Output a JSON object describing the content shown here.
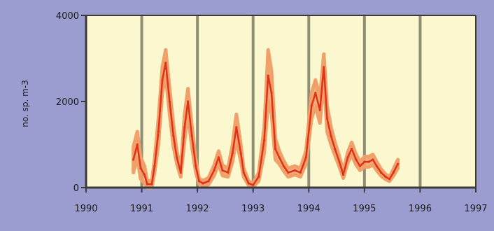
{
  "chart_data": {
    "type": "line",
    "title": "",
    "xlabel": "",
    "ylabel": "no. sp. m-3",
    "xlim": [
      1990,
      1997
    ],
    "ylim": [
      0,
      4000
    ],
    "x_ticks": [
      1990,
      1991,
      1992,
      1993,
      1994,
      1995,
      1996,
      1997
    ],
    "x_tick_labels": [
      "1990",
      "1991",
      "1992",
      "1993",
      "1994",
      "1995",
      "1996",
      "1997"
    ],
    "y_ticks": [
      0,
      2000,
      4000
    ],
    "y_tick_labels": [
      "0",
      "2000",
      "4000"
    ],
    "grid": "vertical",
    "colors": {
      "background": "#9b9ccf",
      "plot": "#fbf7cf",
      "axis": "#3a3a3a",
      "grid": "#8f8f78",
      "band": "#f0a068",
      "line": "#e03218"
    },
    "series": [
      {
        "points": [
          [
            1990.85,
            650
          ],
          [
            1990.92,
            1000
          ],
          [
            1990.98,
            450
          ],
          [
            1991.05,
            300
          ],
          [
            1991.1,
            80
          ],
          [
            1991.18,
            80
          ],
          [
            1991.23,
            500
          ],
          [
            1991.3,
            1300
          ],
          [
            1991.37,
            2500
          ],
          [
            1991.43,
            2900
          ],
          [
            1991.5,
            2000
          ],
          [
            1991.57,
            1200
          ],
          [
            1991.63,
            700
          ],
          [
            1991.7,
            350
          ],
          [
            1991.77,
            1400
          ],
          [
            1991.83,
            2000
          ],
          [
            1991.9,
            1200
          ],
          [
            1991.97,
            500
          ],
          [
            1992.03,
            150
          ],
          [
            1992.1,
            100
          ],
          [
            1992.2,
            150
          ],
          [
            1992.3,
            400
          ],
          [
            1992.38,
            700
          ],
          [
            1992.45,
            400
          ],
          [
            1992.55,
            350
          ],
          [
            1992.63,
            800
          ],
          [
            1992.7,
            1400
          ],
          [
            1992.78,
            800
          ],
          [
            1992.83,
            350
          ],
          [
            1992.92,
            100
          ],
          [
            1993.0,
            60
          ],
          [
            1993.1,
            250
          ],
          [
            1993.2,
            1100
          ],
          [
            1993.27,
            2600
          ],
          [
            1993.33,
            2200
          ],
          [
            1993.4,
            900
          ],
          [
            1993.47,
            700
          ],
          [
            1993.55,
            500
          ],
          [
            1993.63,
            350
          ],
          [
            1993.75,
            400
          ],
          [
            1993.85,
            350
          ],
          [
            1993.95,
            700
          ],
          [
            1994.05,
            1900
          ],
          [
            1994.12,
            2200
          ],
          [
            1994.2,
            1800
          ],
          [
            1994.27,
            2800
          ],
          [
            1994.33,
            1600
          ],
          [
            1994.4,
            1200
          ],
          [
            1994.47,
            900
          ],
          [
            1994.55,
            600
          ],
          [
            1994.62,
            300
          ],
          [
            1994.7,
            700
          ],
          [
            1994.77,
            900
          ],
          [
            1994.85,
            650
          ],
          [
            1994.92,
            500
          ],
          [
            1995.0,
            600
          ],
          [
            1995.08,
            600
          ],
          [
            1995.15,
            650
          ],
          [
            1995.22,
            500
          ],
          [
            1995.3,
            350
          ],
          [
            1995.38,
            250
          ],
          [
            1995.45,
            200
          ],
          [
            1995.52,
            350
          ],
          [
            1995.6,
            550
          ]
        ],
        "band_halfwidth": [
          300,
          300,
          250,
          200,
          80,
          80,
          150,
          300,
          300,
          300,
          300,
          250,
          150,
          100,
          300,
          300,
          250,
          150,
          60,
          60,
          80,
          120,
          150,
          120,
          100,
          200,
          300,
          200,
          100,
          50,
          40,
          100,
          300,
          600,
          500,
          250,
          150,
          120,
          100,
          100,
          100,
          150,
          300,
          300,
          300,
          300,
          300,
          200,
          150,
          120,
          80,
          120,
          150,
          120,
          100,
          120,
          120,
          120,
          100,
          80,
          60,
          50,
          80,
          100
        ]
      }
    ]
  }
}
